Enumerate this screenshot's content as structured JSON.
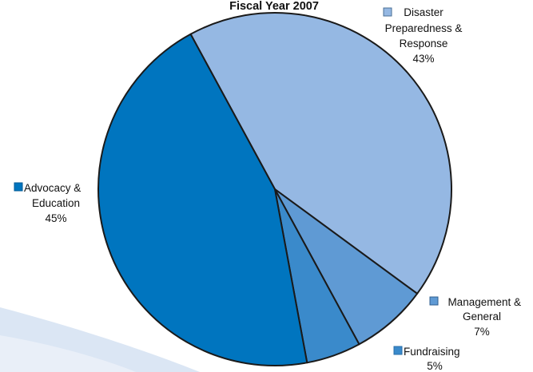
{
  "chart_data": {
    "type": "pie",
    "title": "Fiscal Year 2007",
    "slices": [
      {
        "label": [
          "Disaster",
          "Preparedness &",
          "Response"
        ],
        "percent_label": "43%",
        "value": 43,
        "color": "#95b8e3"
      },
      {
        "label": [
          "Management &",
          "General"
        ],
        "percent_label": "7%",
        "value": 7,
        "color": "#5f9ad4"
      },
      {
        "label": [
          "Fundraising"
        ],
        "percent_label": "5%",
        "value": 5,
        "color": "#3a8acb"
      },
      {
        "label": [
          "Advocacy &",
          "Education"
        ],
        "percent_label": "45%",
        "value": 45,
        "color": "#0075bf"
      }
    ],
    "start_angle_deg": -118.5,
    "direction": "clockwise",
    "legend": "labels beside slices with color squares",
    "background_swoosh_color": "#dbe6f4"
  }
}
